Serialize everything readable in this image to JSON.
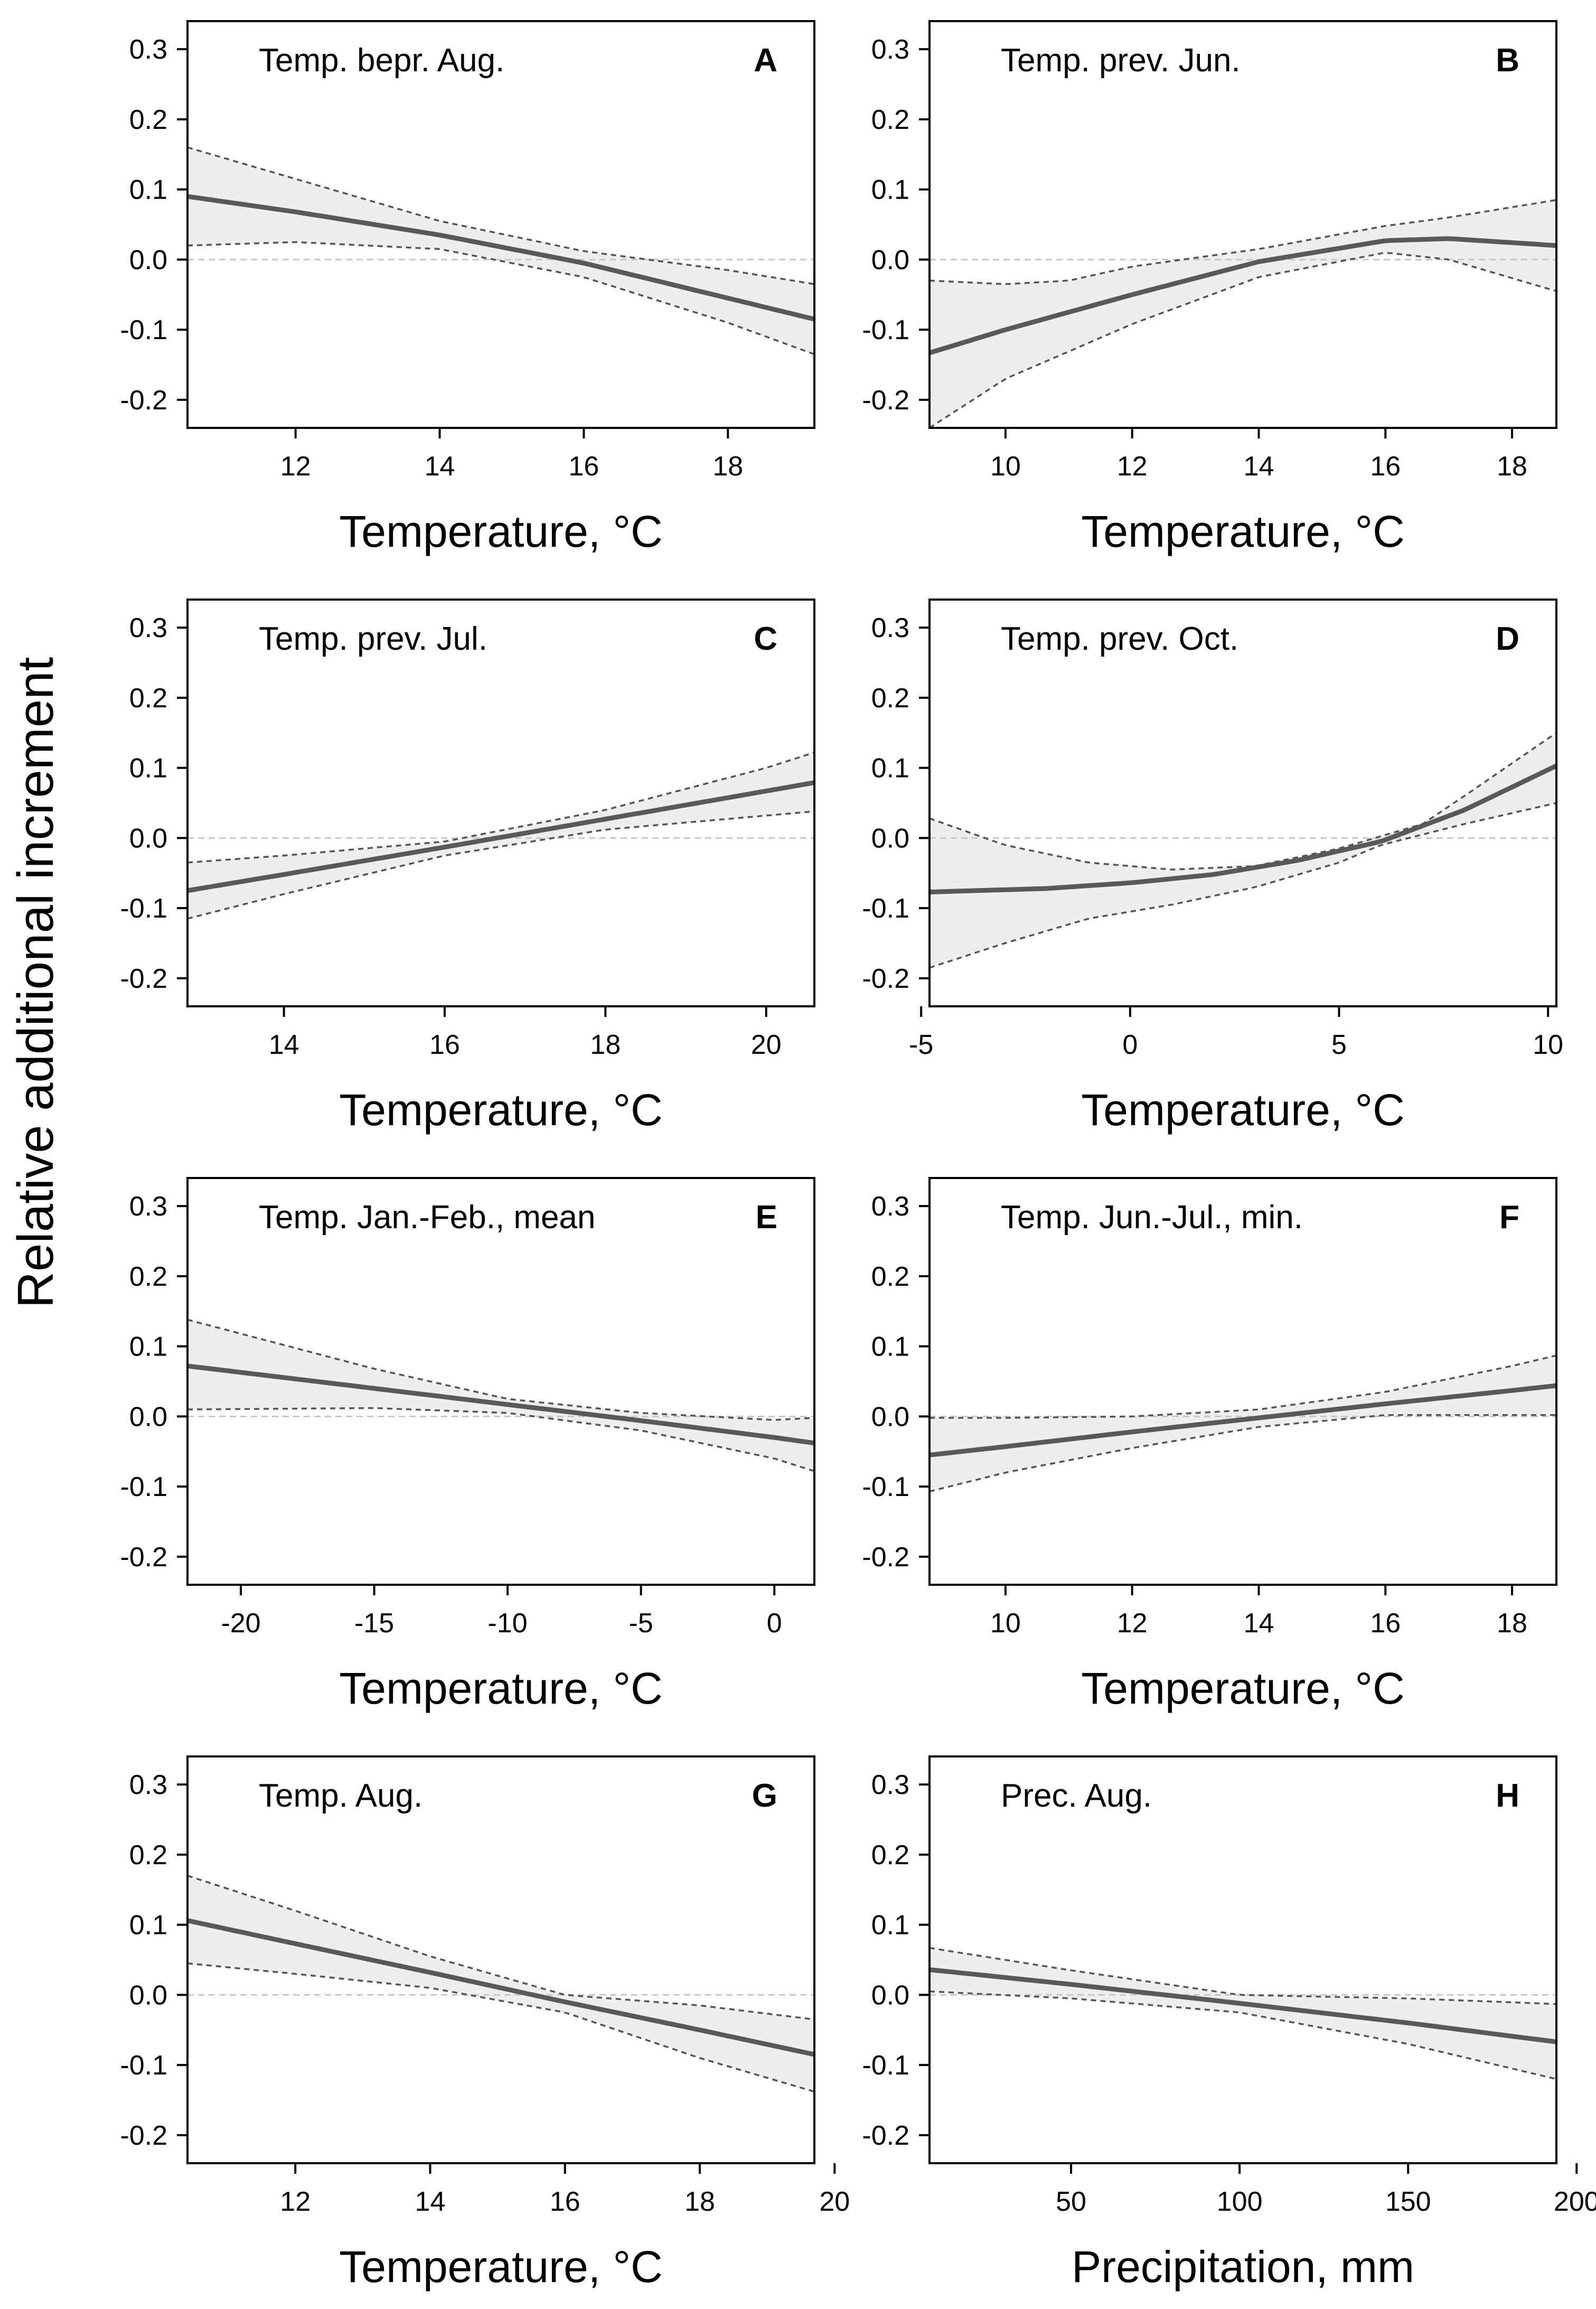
{
  "figure": {
    "ylabel": "Relative additional increment"
  },
  "colors": {
    "curve": "#595959",
    "band": "#eeeeee",
    "ci": "#555555",
    "zero": "#c8c8c8",
    "frame": "#000000"
  },
  "chart_data": [
    {
      "letter": "A",
      "type": "line",
      "title": "Temp. bepr. Aug.",
      "xlabel": "Temperature, °C",
      "ylabel": "Relative additional increment",
      "xlim": [
        10.5,
        19.2
      ],
      "ylim": [
        -0.24,
        0.34
      ],
      "x_ticks": [
        12,
        14,
        16,
        18
      ],
      "x_tick_labels": [
        "12",
        "14",
        "16",
        "18"
      ],
      "y_ticks": [
        -0.2,
        -0.1,
        0.0,
        0.1,
        0.2,
        0.3
      ],
      "y_tick_labels": [
        "-0.2",
        "-0.1",
        "0.0",
        "0.1",
        "0.2",
        "0.3"
      ],
      "fit": {
        "x": [
          10.5,
          12,
          14,
          16,
          18,
          19.2
        ],
        "y": [
          0.09,
          0.068,
          0.035,
          -0.005,
          -0.055,
          -0.085
        ]
      },
      "ci_upper": {
        "x": [
          10.5,
          12,
          14,
          16,
          18,
          19.2
        ],
        "y": [
          0.16,
          0.115,
          0.055,
          0.012,
          -0.015,
          -0.035
        ]
      },
      "ci_lower": {
        "x": [
          10.5,
          12,
          14,
          16,
          18,
          19.2
        ],
        "y": [
          0.02,
          0.025,
          0.015,
          -0.025,
          -0.09,
          -0.135
        ]
      }
    },
    {
      "letter": "B",
      "type": "line",
      "title": "Temp. prev. Jun.",
      "xlabel": "Temperature, °C",
      "ylabel": "Relative additional increment",
      "xlim": [
        8.8,
        18.7
      ],
      "ylim": [
        -0.24,
        0.34
      ],
      "x_ticks": [
        10,
        12,
        14,
        16,
        18
      ],
      "x_tick_labels": [
        "10",
        "12",
        "14",
        "16",
        "18"
      ],
      "y_ticks": [
        -0.2,
        -0.1,
        0.0,
        0.1,
        0.2,
        0.3
      ],
      "y_tick_labels": [
        "-0.2",
        "-0.1",
        "0.0",
        "0.1",
        "0.2",
        "0.3"
      ],
      "fit": {
        "x": [
          8.8,
          10,
          12,
          14,
          16,
          17,
          18.7
        ],
        "y": [
          -0.133,
          -0.1,
          -0.05,
          -0.003,
          0.027,
          0.03,
          0.02
        ]
      },
      "ci_upper": {
        "x": [
          8.8,
          10,
          11,
          12,
          14,
          16,
          17,
          18.7
        ],
        "y": [
          -0.03,
          -0.035,
          -0.03,
          -0.01,
          0.015,
          0.048,
          0.06,
          0.085
        ]
      },
      "ci_lower": {
        "x": [
          8.8,
          10,
          12,
          14,
          16,
          17,
          18.7
        ],
        "y": [
          -0.24,
          -0.17,
          -0.092,
          -0.025,
          0.01,
          0.0,
          -0.045
        ]
      }
    },
    {
      "letter": "C",
      "type": "line",
      "title": "Temp. prev. Jul.",
      "xlabel": "Temperature, °C",
      "ylabel": "Relative additional increment",
      "xlim": [
        12.8,
        20.6
      ],
      "ylim": [
        -0.24,
        0.34
      ],
      "x_ticks": [
        14,
        16,
        18,
        20
      ],
      "x_tick_labels": [
        "14",
        "16",
        "18",
        "20"
      ],
      "y_ticks": [
        -0.2,
        -0.1,
        0.0,
        0.1,
        0.2,
        0.3
      ],
      "y_tick_labels": [
        "-0.2",
        "-0.1",
        "0.0",
        "0.1",
        "0.2",
        "0.3"
      ],
      "fit": {
        "x": [
          12.8,
          14,
          16,
          18,
          20,
          20.6
        ],
        "y": [
          -0.075,
          -0.052,
          -0.013,
          0.027,
          0.067,
          0.079
        ]
      },
      "ci_upper": {
        "x": [
          12.8,
          14,
          16,
          18,
          20,
          20.6
        ],
        "y": [
          -0.035,
          -0.025,
          -0.005,
          0.04,
          0.1,
          0.122
        ]
      },
      "ci_lower": {
        "x": [
          12.8,
          14,
          16,
          18,
          20,
          20.6
        ],
        "y": [
          -0.115,
          -0.08,
          -0.025,
          0.012,
          0.032,
          0.038
        ]
      }
    },
    {
      "letter": "D",
      "type": "line",
      "title": "Temp. prev. Oct.",
      "xlabel": "Temperature, °C",
      "ylabel": "Relative additional increment",
      "xlim": [
        -4.8,
        10.2
      ],
      "ylim": [
        -0.24,
        0.34
      ],
      "x_ticks": [
        -5,
        0,
        5,
        10
      ],
      "x_tick_labels": [
        "-5",
        "0",
        "5",
        "10"
      ],
      "y_ticks": [
        -0.2,
        -0.1,
        0.0,
        0.1,
        0.2,
        0.3
      ],
      "y_tick_labels": [
        "-0.2",
        "-0.1",
        "0.0",
        "0.1",
        "0.2",
        "0.3"
      ],
      "fit": {
        "x": [
          -4.8,
          -2,
          0,
          2,
          4,
          6,
          8,
          10.2
        ],
        "y": [
          -0.077,
          -0.072,
          -0.064,
          -0.052,
          -0.032,
          -0.005,
          0.04,
          0.103
        ]
      },
      "ci_upper": {
        "x": [
          -4.8,
          -3,
          -1,
          1,
          3,
          5,
          7,
          8,
          10.2
        ],
        "y": [
          0.028,
          -0.01,
          -0.035,
          -0.045,
          -0.04,
          -0.015,
          0.02,
          0.06,
          0.15
        ]
      },
      "ci_lower": {
        "x": [
          -4.8,
          -3,
          -1,
          1,
          3,
          5,
          6,
          8,
          10.2
        ],
        "y": [
          -0.185,
          -0.15,
          -0.115,
          -0.095,
          -0.07,
          -0.035,
          -0.01,
          0.02,
          0.05
        ]
      }
    },
    {
      "letter": "E",
      "type": "line",
      "title": "Temp. Jan.-Feb., mean",
      "xlabel": "Temperature, °C",
      "ylabel": "Relative additional increment",
      "xlim": [
        -22,
        1.5
      ],
      "ylim": [
        -0.24,
        0.34
      ],
      "x_ticks": [
        -20,
        -15,
        -10,
        -5,
        0
      ],
      "x_tick_labels": [
        "-20",
        "-15",
        "-10",
        "-5",
        "0"
      ],
      "y_ticks": [
        -0.2,
        -0.1,
        0.0,
        0.1,
        0.2,
        0.3
      ],
      "y_tick_labels": [
        "-0.2",
        "-0.1",
        "0.0",
        "0.1",
        "0.2",
        "0.3"
      ],
      "fit": {
        "x": [
          -22,
          -15,
          -10,
          -5,
          0,
          1.5
        ],
        "y": [
          0.072,
          0.04,
          0.017,
          -0.006,
          -0.03,
          -0.038
        ]
      },
      "ci_upper": {
        "x": [
          -22,
          -15,
          -10,
          -5,
          0,
          1.5
        ],
        "y": [
          0.138,
          0.068,
          0.025,
          0.005,
          -0.005,
          -0.002
        ]
      },
      "ci_lower": {
        "x": [
          -22,
          -15,
          -10,
          -5,
          0,
          1.5
        ],
        "y": [
          0.01,
          0.012,
          0.005,
          -0.02,
          -0.06,
          -0.078
        ]
      }
    },
    {
      "letter": "F",
      "type": "line",
      "title": "Temp. Jun.-Jul., min.",
      "xlabel": "Temperature, °C",
      "ylabel": "Relative additional increment",
      "xlim": [
        8.8,
        18.7
      ],
      "ylim": [
        -0.24,
        0.34
      ],
      "x_ticks": [
        10,
        12,
        14,
        16,
        18
      ],
      "x_tick_labels": [
        "10",
        "12",
        "14",
        "16",
        "18"
      ],
      "y_ticks": [
        -0.2,
        -0.1,
        0.0,
        0.1,
        0.2,
        0.3
      ],
      "y_tick_labels": [
        "-0.2",
        "-0.1",
        "0.0",
        "0.1",
        "0.2",
        "0.3"
      ],
      "fit": {
        "x": [
          8.8,
          10,
          12,
          14,
          16,
          18,
          18.7
        ],
        "y": [
          -0.055,
          -0.043,
          -0.022,
          -0.002,
          0.018,
          0.037,
          0.044
        ]
      },
      "ci_upper": {
        "x": [
          8.8,
          10,
          12,
          14,
          16,
          18,
          18.7
        ],
        "y": [
          -0.002,
          -0.002,
          0.0,
          0.01,
          0.035,
          0.072,
          0.087
        ]
      },
      "ci_lower": {
        "x": [
          8.8,
          10,
          12,
          14,
          16,
          18,
          18.7
        ],
        "y": [
          -0.107,
          -0.08,
          -0.045,
          -0.015,
          0.002,
          0.002,
          0.002
        ]
      }
    },
    {
      "letter": "G",
      "type": "line",
      "title": "Temp. Aug.",
      "xlabel": "Temperature, °C",
      "ylabel": "Relative additional increment",
      "xlim": [
        10.4,
        19.7
      ],
      "ylim": [
        -0.24,
        0.34
      ],
      "x_ticks": [
        12,
        14,
        16,
        18,
        20
      ],
      "x_tick_labels": [
        "12",
        "14",
        "16",
        "18",
        "20"
      ],
      "y_ticks": [
        -0.2,
        -0.1,
        0.0,
        0.1,
        0.2,
        0.3
      ],
      "y_tick_labels": [
        "-0.2",
        "-0.1",
        "0.0",
        "0.1",
        "0.2",
        "0.3"
      ],
      "fit": {
        "x": [
          10.4,
          12,
          14,
          16,
          18,
          19.7
        ],
        "y": [
          0.106,
          0.073,
          0.032,
          -0.01,
          -0.05,
          -0.085
        ]
      },
      "ci_upper": {
        "x": [
          10.4,
          12,
          14,
          16,
          18,
          19.7
        ],
        "y": [
          0.17,
          0.12,
          0.055,
          0.0,
          -0.015,
          -0.035
        ]
      },
      "ci_lower": {
        "x": [
          10.4,
          12,
          14,
          16,
          18,
          19.7
        ],
        "y": [
          0.045,
          0.03,
          0.01,
          -0.025,
          -0.09,
          -0.138
        ]
      }
    },
    {
      "letter": "H",
      "type": "line",
      "title": "Prec. Aug.",
      "xlabel": "Precipitation, mm",
      "ylabel": "Relative additional increment",
      "xlim": [
        8,
        194
      ],
      "ylim": [
        -0.24,
        0.34
      ],
      "x_ticks": [
        50,
        100,
        150,
        200
      ],
      "x_tick_labels": [
        "50",
        "100",
        "150",
        "200"
      ],
      "y_ticks": [
        -0.2,
        -0.1,
        0.0,
        0.1,
        0.2,
        0.3
      ],
      "y_tick_labels": [
        "-0.2",
        "-0.1",
        "0.0",
        "0.1",
        "0.2",
        "0.3"
      ],
      "fit": {
        "x": [
          8,
          50,
          100,
          150,
          194
        ],
        "y": [
          0.036,
          0.015,
          -0.012,
          -0.04,
          -0.067
        ]
      },
      "ci_upper": {
        "x": [
          8,
          50,
          100,
          150,
          194
        ],
        "y": [
          0.067,
          0.035,
          0.0,
          -0.005,
          -0.013
        ]
      },
      "ci_lower": {
        "x": [
          8,
          50,
          100,
          150,
          194
        ],
        "y": [
          0.005,
          -0.005,
          -0.025,
          -0.07,
          -0.12
        ]
      }
    }
  ]
}
